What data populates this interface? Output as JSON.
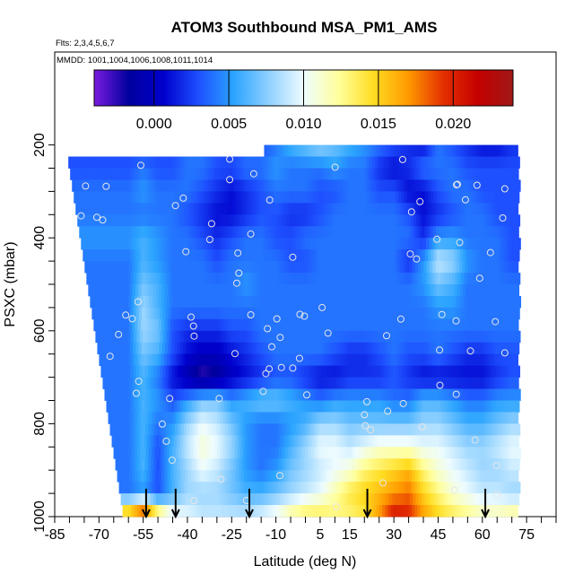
{
  "chart_data": {
    "type": "heatmap",
    "title": "ATOM3 Southbound MSA_PM1_AMS",
    "subtitle": "Flts: 2,3,4,5,6,7",
    "note": "MMDD: 1001,1004,1006,1008,1011,1014",
    "xlabel": "Latitude (deg N)",
    "ylabel": "PSXC (mbar)",
    "xlim": [
      -85,
      85
    ],
    "ylim": [
      1000,
      0
    ],
    "x_tick_values": [
      -85,
      -70,
      -55,
      -40,
      -25,
      -10,
      5,
      15,
      30,
      45,
      60,
      75
    ],
    "x_tick_labels": [
      "-85",
      "-70",
      "-55",
      "-40",
      "-25",
      "-10",
      "5",
      "15",
      "30",
      "45",
      "60",
      "75"
    ],
    "y_tick_values": [
      200,
      400,
      600,
      800,
      1000
    ],
    "y_tick_labels": [
      "200",
      "400",
      "600",
      "800",
      "1000"
    ],
    "colorbar": {
      "range": [
        -0.004,
        0.024
      ],
      "tick_values": [
        0.0,
        0.005,
        0.01,
        0.015,
        0.02
      ],
      "tick_labels": [
        "0.000",
        "0.005",
        "0.010",
        "0.015",
        "0.020"
      ],
      "colors": [
        "#7a1bde",
        "#00009e",
        "#0000cd",
        "#1e50ff",
        "#2ba4ff",
        "#8fd0ff",
        "#eefcff",
        "#ffff9c",
        "#ffdd22",
        "#ff9900",
        "#e43000",
        "#c40000",
        "#a01818"
      ]
    },
    "profile_latitudes": [
      -54,
      -44,
      -19,
      21,
      61
    ],
    "pressure_bins": [
      225,
      250,
      275,
      300,
      325,
      350,
      375,
      400,
      425,
      450,
      475,
      500,
      525,
      550,
      575,
      600,
      625,
      650,
      675,
      700,
      725,
      750,
      775,
      800,
      825,
      850,
      875,
      900,
      925,
      950,
      975,
      1000
    ],
    "lat_edges": [
      -60,
      -40,
      -25,
      -10,
      5,
      20,
      35,
      50,
      70
    ],
    "anchor_latitudes": [
      -60,
      -55,
      -50,
      -45,
      -40,
      -35,
      -30,
      -25,
      -20,
      -15,
      -10,
      -5,
      0,
      5,
      10,
      15,
      20,
      25,
      30,
      35,
      40,
      45,
      50,
      55,
      60,
      65,
      70
    ],
    "anchor_pressures": [
      200,
      250,
      300,
      350,
      400,
      450,
      500,
      550,
      600,
      650,
      700,
      750,
      800,
      850,
      900,
      950,
      1000
    ],
    "values": [
      [
        0.003,
        0.002,
        0.003,
        0.003,
        0.004,
        0.004,
        0.003,
        0.002,
        0.003,
        0.003,
        0.004,
        0.006,
        0.007,
        0.008,
        0.007,
        0.006,
        0.005,
        0.004,
        0.003,
        0.002,
        0.001,
        0.004,
        0.003,
        0.002,
        0.001,
        0.001,
        0.002
      ],
      [
        0.003,
        0.004,
        0.003,
        0.003,
        0.004,
        0.004,
        0.003,
        0.003,
        0.004,
        0.004,
        0.005,
        0.004,
        0.004,
        0.004,
        0.005,
        0.004,
        0.004,
        0.002,
        0.001,
        0.002,
        0.004,
        0.004,
        0.004,
        0.003,
        0.003,
        0.003,
        0.003
      ],
      [
        0.004,
        0.005,
        0.004,
        0.004,
        0.004,
        0.003,
        0.002,
        0.001,
        0.002,
        0.003,
        0.004,
        0.004,
        0.004,
        0.003,
        0.003,
        0.004,
        0.004,
        0.003,
        0.003,
        0.001,
        0.001,
        0.003,
        0.004,
        0.004,
        0.003,
        0.003,
        0.003
      ],
      [
        0.004,
        0.004,
        0.004,
        0.004,
        0.003,
        0.002,
        0.001,
        0.001,
        0.002,
        0.003,
        0.003,
        0.002,
        0.002,
        0.003,
        0.004,
        0.004,
        0.004,
        0.004,
        0.004,
        0.003,
        0.001,
        0.002,
        0.003,
        0.004,
        0.004,
        0.003,
        0.003
      ],
      [
        0.005,
        0.006,
        0.005,
        0.004,
        0.004,
        0.003,
        0.002,
        0.003,
        0.004,
        0.004,
        0.003,
        0.003,
        0.004,
        0.004,
        0.004,
        0.004,
        0.004,
        0.004,
        0.004,
        0.004,
        0.002,
        0.005,
        0.005,
        0.004,
        0.004,
        0.004,
        0.003
      ],
      [
        0.004,
        0.006,
        0.005,
        0.004,
        0.004,
        0.004,
        0.003,
        0.004,
        0.004,
        0.004,
        0.004,
        0.003,
        0.003,
        0.004,
        0.004,
        0.004,
        0.004,
        0.004,
        0.004,
        0.002,
        0.005,
        0.009,
        0.008,
        0.005,
        0.004,
        0.004,
        0.003
      ],
      [
        0.004,
        0.007,
        0.006,
        0.004,
        0.004,
        0.004,
        0.004,
        0.004,
        0.005,
        0.004,
        0.004,
        0.004,
        0.004,
        0.004,
        0.004,
        0.004,
        0.004,
        0.004,
        0.004,
        0.004,
        0.005,
        0.007,
        0.006,
        0.004,
        0.004,
        0.004,
        0.004
      ],
      [
        0.004,
        0.008,
        0.006,
        0.004,
        0.004,
        0.004,
        0.004,
        0.004,
        0.004,
        0.004,
        0.004,
        0.004,
        0.004,
        0.004,
        0.004,
        0.004,
        0.004,
        0.004,
        0.004,
        0.004,
        0.004,
        0.005,
        0.005,
        0.004,
        0.004,
        0.004,
        0.004
      ],
      [
        0.004,
        0.008,
        0.007,
        0.003,
        0.002,
        0.002,
        0.002,
        0.003,
        0.003,
        0.004,
        0.004,
        0.004,
        0.004,
        0.004,
        0.004,
        0.004,
        0.004,
        0.004,
        0.004,
        0.004,
        0.004,
        0.004,
        0.004,
        0.004,
        0.004,
        0.004,
        0.004
      ],
      [
        0.004,
        0.007,
        0.006,
        0.003,
        0.001,
        0.0,
        0.0,
        0.001,
        0.002,
        0.003,
        0.004,
        0.004,
        0.004,
        0.004,
        0.003,
        0.002,
        0.002,
        0.003,
        0.004,
        0.003,
        0.003,
        0.004,
        0.003,
        0.002,
        0.002,
        0.003,
        0.003
      ],
      [
        0.004,
        0.006,
        0.004,
        0.001,
        -0.001,
        -0.003,
        -0.002,
        0.0,
        0.001,
        0.002,
        0.003,
        0.003,
        0.002,
        0.001,
        0.001,
        0.002,
        0.002,
        0.002,
        0.003,
        0.002,
        0.001,
        0.001,
        0.001,
        0.001,
        0.001,
        0.002,
        0.003
      ],
      [
        0.004,
        0.006,
        0.005,
        0.003,
        0.005,
        0.007,
        0.007,
        0.005,
        0.006,
        0.007,
        0.007,
        0.006,
        0.005,
        0.004,
        0.005,
        0.005,
        0.005,
        0.005,
        0.004,
        0.004,
        0.006,
        0.006,
        0.005,
        0.004,
        0.004,
        0.005,
        0.005
      ],
      [
        0.004,
        0.006,
        0.004,
        0.005,
        0.008,
        0.01,
        0.009,
        0.007,
        0.005,
        0.004,
        0.004,
        0.005,
        0.006,
        0.008,
        0.008,
        0.007,
        0.007,
        0.007,
        0.007,
        0.007,
        0.008,
        0.008,
        0.007,
        0.006,
        0.006,
        0.007,
        0.008
      ],
      [
        0.004,
        0.006,
        0.003,
        0.006,
        0.009,
        0.011,
        0.01,
        0.008,
        0.005,
        0.004,
        0.004,
        0.006,
        0.008,
        0.01,
        0.01,
        0.009,
        0.01,
        0.011,
        0.011,
        0.011,
        0.01,
        0.01,
        0.009,
        0.008,
        0.008,
        0.009,
        0.01
      ],
      [
        0.004,
        0.006,
        0.003,
        0.006,
        0.008,
        0.01,
        0.009,
        0.007,
        0.005,
        0.004,
        0.005,
        0.007,
        0.008,
        0.009,
        0.01,
        0.011,
        0.013,
        0.014,
        0.015,
        0.016,
        0.013,
        0.011,
        0.01,
        0.009,
        0.008,
        0.008,
        0.009
      ],
      [
        0.004,
        0.005,
        0.003,
        0.006,
        0.008,
        0.008,
        0.008,
        0.007,
        0.006,
        0.006,
        0.007,
        0.008,
        0.009,
        0.01,
        0.012,
        0.014,
        0.015,
        0.016,
        0.017,
        0.018,
        0.015,
        0.013,
        0.011,
        0.01,
        0.009,
        0.009,
        0.008
      ],
      [
        0.018,
        0.022,
        0.016,
        0.011,
        0.01,
        0.009,
        0.009,
        0.009,
        0.009,
        0.01,
        0.011,
        0.013,
        0.014,
        0.014,
        0.013,
        0.013,
        0.014,
        0.017,
        0.021,
        0.02,
        0.017,
        0.015,
        0.014,
        0.013,
        0.012,
        0.012,
        0.013
      ]
    ]
  }
}
